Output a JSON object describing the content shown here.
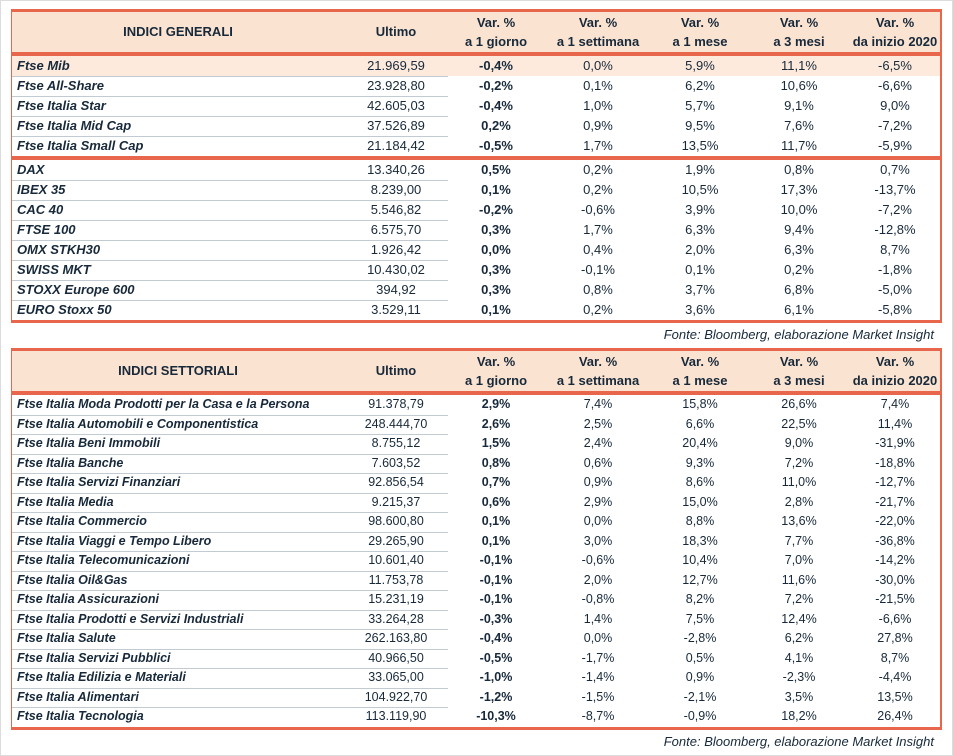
{
  "colors": {
    "accent": "#e8664c",
    "header_bg": "#fbe3d1",
    "highlight_row_bg": "#fdeadd",
    "text": "#17293a",
    "row_divider": "#c2cbd2"
  },
  "columns": {
    "ultimo": "Ultimo",
    "var_headers": [
      {
        "line1": "Var. %",
        "line2": "a 1 giorno"
      },
      {
        "line1": "Var. %",
        "line2": "a 1 settimana"
      },
      {
        "line1": "Var. %",
        "line2": "a 1 mese"
      },
      {
        "line1": "Var. %",
        "line2": "a 3 mesi"
      },
      {
        "line1": "Var. %",
        "line2": "da inizio 2020"
      }
    ]
  },
  "general_table": {
    "title": "INDICI GENERALI",
    "source": "Fonte: Bloomberg, elaborazione Market Insight",
    "groups": [
      {
        "rows": [
          {
            "name": "Ftse Mib",
            "ultimo": "21.969,59",
            "d1": "-0,4%",
            "w1": "0,0%",
            "m1": "5,9%",
            "m3": "11,1%",
            "ytd": "-6,5%",
            "highlight": true
          },
          {
            "name": "Ftse All-Share",
            "ultimo": "23.928,80",
            "d1": "-0,2%",
            "w1": "0,1%",
            "m1": "6,2%",
            "m3": "10,6%",
            "ytd": "-6,6%"
          },
          {
            "name": "Ftse Italia Star",
            "ultimo": "42.605,03",
            "d1": "-0,4%",
            "w1": "1,0%",
            "m1": "5,7%",
            "m3": "9,1%",
            "ytd": "9,0%"
          },
          {
            "name": "Ftse Italia Mid Cap",
            "ultimo": "37.526,89",
            "d1": "0,2%",
            "w1": "0,9%",
            "m1": "9,5%",
            "m3": "7,6%",
            "ytd": "-7,2%"
          },
          {
            "name": "Ftse Italia Small Cap",
            "ultimo": "21.184,42",
            "d1": "-0,5%",
            "w1": "1,7%",
            "m1": "13,5%",
            "m3": "11,7%",
            "ytd": "-5,9%"
          }
        ]
      },
      {
        "rows": [
          {
            "name": "DAX",
            "ultimo": "13.340,26",
            "d1": "0,5%",
            "w1": "0,2%",
            "m1": "1,9%",
            "m3": "0,8%",
            "ytd": "0,7%"
          },
          {
            "name": "IBEX 35",
            "ultimo": "8.239,00",
            "d1": "0,1%",
            "w1": "0,2%",
            "m1": "10,5%",
            "m3": "17,3%",
            "ytd": "-13,7%"
          },
          {
            "name": "CAC 40",
            "ultimo": "5.546,82",
            "d1": "-0,2%",
            "w1": "-0,6%",
            "m1": "3,9%",
            "m3": "10,0%",
            "ytd": "-7,2%"
          },
          {
            "name": "FTSE 100",
            "ultimo": "6.575,70",
            "d1": "0,3%",
            "w1": "1,7%",
            "m1": "6,3%",
            "m3": "9,4%",
            "ytd": "-12,8%"
          },
          {
            "name": "OMX STKH30",
            "ultimo": "1.926,42",
            "d1": "0,0%",
            "w1": "0,4%",
            "m1": "2,0%",
            "m3": "6,3%",
            "ytd": "8,7%"
          },
          {
            "name": "SWISS MKT",
            "ultimo": "10.430,02",
            "d1": "0,3%",
            "w1": "-0,1%",
            "m1": "0,1%",
            "m3": "0,2%",
            "ytd": "-1,8%"
          },
          {
            "name": "STOXX Europe 600",
            "ultimo": "394,92",
            "d1": "0,3%",
            "w1": "0,8%",
            "m1": "3,7%",
            "m3": "6,8%",
            "ytd": "-5,0%"
          },
          {
            "name": "EURO Stoxx 50",
            "ultimo": "3.529,11",
            "d1": "0,1%",
            "w1": "0,2%",
            "m1": "3,6%",
            "m3": "6,1%",
            "ytd": "-5,8%"
          }
        ]
      }
    ]
  },
  "sector_table": {
    "title": "INDICI SETTORIALI",
    "source": "Fonte: Bloomberg, elaborazione Market Insight",
    "rows": [
      {
        "name": "Ftse Italia Moda Prodotti per la Casa e la Persona",
        "ultimo": "91.378,79",
        "d1": "2,9%",
        "w1": "7,4%",
        "m1": "15,8%",
        "m3": "26,6%",
        "ytd": "7,4%"
      },
      {
        "name": "Ftse Italia Automobili e Componentistica",
        "ultimo": "248.444,70",
        "d1": "2,6%",
        "w1": "2,5%",
        "m1": "6,6%",
        "m3": "22,5%",
        "ytd": "11,4%"
      },
      {
        "name": "Ftse Italia Beni Immobili",
        "ultimo": "8.755,12",
        "d1": "1,5%",
        "w1": "2,4%",
        "m1": "20,4%",
        "m3": "9,0%",
        "ytd": "-31,9%"
      },
      {
        "name": "Ftse Italia Banche",
        "ultimo": "7.603,52",
        "d1": "0,8%",
        "w1": "0,6%",
        "m1": "9,3%",
        "m3": "7,2%",
        "ytd": "-18,8%"
      },
      {
        "name": "Ftse Italia Servizi Finanziari",
        "ultimo": "92.856,54",
        "d1": "0,7%",
        "w1": "0,9%",
        "m1": "8,6%",
        "m3": "11,0%",
        "ytd": "-12,7%"
      },
      {
        "name": "Ftse Italia Media",
        "ultimo": "9.215,37",
        "d1": "0,6%",
        "w1": "2,9%",
        "m1": "15,0%",
        "m3": "2,8%",
        "ytd": "-21,7%"
      },
      {
        "name": "Ftse Italia Commercio",
        "ultimo": "98.600,80",
        "d1": "0,1%",
        "w1": "0,0%",
        "m1": "8,8%",
        "m3": "13,6%",
        "ytd": "-22,0%"
      },
      {
        "name": "Ftse Italia Viaggi e Tempo Libero",
        "ultimo": "29.265,90",
        "d1": "0,1%",
        "w1": "3,0%",
        "m1": "18,3%",
        "m3": "7,7%",
        "ytd": "-36,8%"
      },
      {
        "name": "Ftse Italia Telecomunicazioni",
        "ultimo": "10.601,40",
        "d1": "-0,1%",
        "w1": "-0,6%",
        "m1": "10,4%",
        "m3": "7,0%",
        "ytd": "-14,2%"
      },
      {
        "name": "Ftse Italia Oil&Gas",
        "ultimo": "11.753,78",
        "d1": "-0,1%",
        "w1": "2,0%",
        "m1": "12,7%",
        "m3": "11,6%",
        "ytd": "-30,0%"
      },
      {
        "name": "Ftse Italia Assicurazioni",
        "ultimo": "15.231,19",
        "d1": "-0,1%",
        "w1": "-0,8%",
        "m1": "8,2%",
        "m3": "7,2%",
        "ytd": "-21,5%"
      },
      {
        "name": "Ftse Italia Prodotti e Servizi Industriali",
        "ultimo": "33.264,28",
        "d1": "-0,3%",
        "w1": "1,4%",
        "m1": "7,5%",
        "m3": "12,4%",
        "ytd": "-6,6%"
      },
      {
        "name": "Ftse Italia Salute",
        "ultimo": "262.163,80",
        "d1": "-0,4%",
        "w1": "0,0%",
        "m1": "-2,8%",
        "m3": "6,2%",
        "ytd": "27,8%"
      },
      {
        "name": "Ftse Italia Servizi Pubblici",
        "ultimo": "40.966,50",
        "d1": "-0,5%",
        "w1": "-1,7%",
        "m1": "0,5%",
        "m3": "4,1%",
        "ytd": "8,7%"
      },
      {
        "name": "Ftse Italia Edilizia e Materiali",
        "ultimo": "33.065,00",
        "d1": "-1,0%",
        "w1": "-1,4%",
        "m1": "0,9%",
        "m3": "-2,3%",
        "ytd": "-4,4%"
      },
      {
        "name": "Ftse Italia Alimentari",
        "ultimo": "104.922,70",
        "d1": "-1,2%",
        "w1": "-1,5%",
        "m1": "-2,1%",
        "m3": "3,5%",
        "ytd": "13,5%"
      },
      {
        "name": "Ftse Italia Tecnologia",
        "ultimo": "113.119,90",
        "d1": "-10,3%",
        "w1": "-8,7%",
        "m1": "-0,9%",
        "m3": "18,2%",
        "ytd": "26,4%"
      }
    ]
  }
}
